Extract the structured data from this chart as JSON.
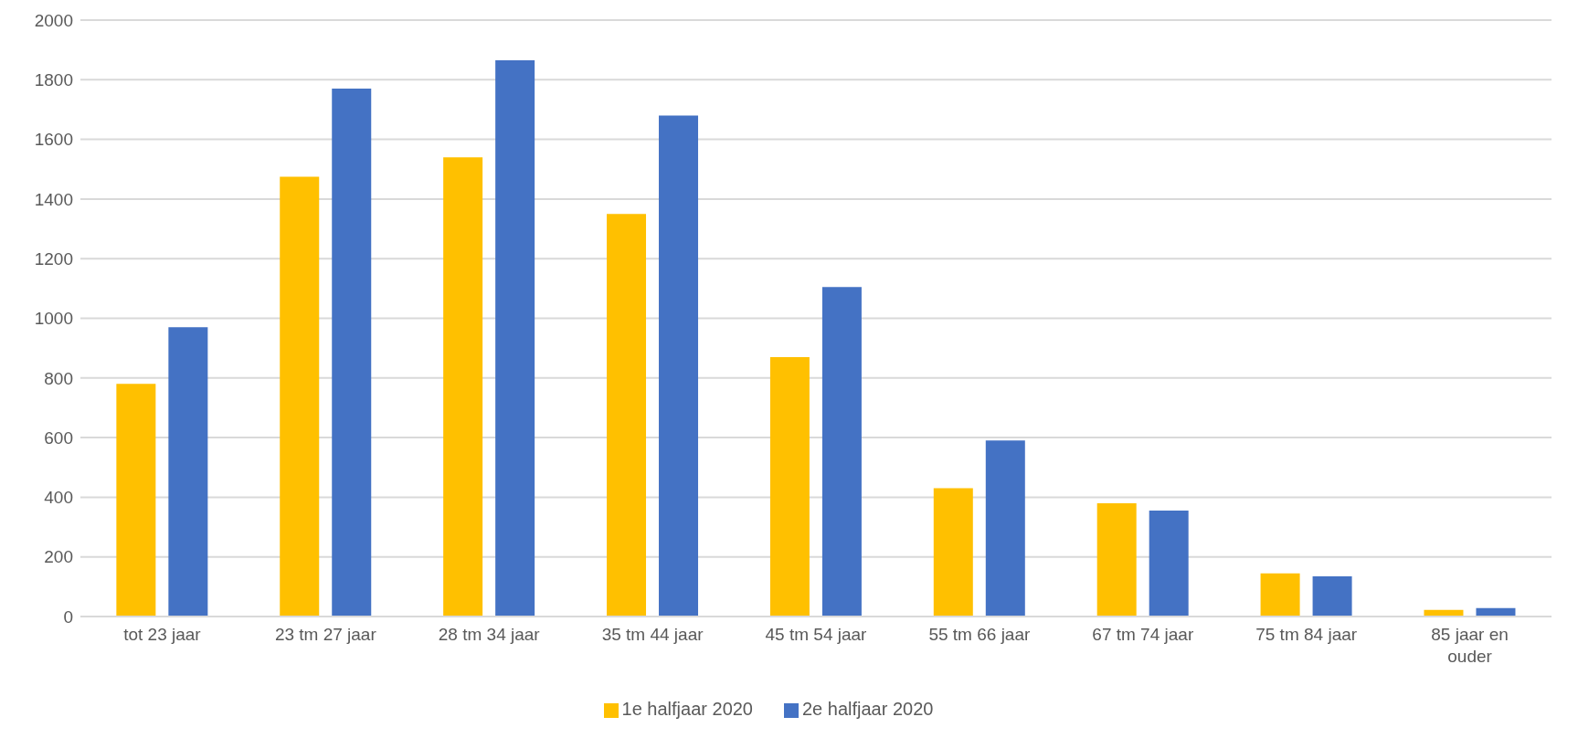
{
  "chart_data": {
    "type": "bar",
    "categories": [
      "tot 23 jaar",
      "23 tm 27 jaar",
      "28 tm 34 jaar",
      "35 tm 44 jaar",
      "45 tm 54 jaar",
      "55 tm 66 jaar",
      "67 tm 74 jaar",
      "75 tm 84 jaar",
      "85 jaar en ouder"
    ],
    "series": [
      {
        "name": "1e halfjaar 2020",
        "color": "#ffc000",
        "values": [
          780,
          1475,
          1540,
          1350,
          870,
          430,
          380,
          145,
          22
        ]
      },
      {
        "name": "2e halfjaar 2020",
        "color": "#4472c4",
        "values": [
          970,
          1770,
          1865,
          1680,
          1105,
          590,
          355,
          135,
          28
        ]
      }
    ],
    "ylim": [
      0,
      2000
    ],
    "yticks": [
      0,
      200,
      400,
      600,
      800,
      1000,
      1200,
      1400,
      1600,
      1800,
      2000
    ],
    "grid": "y",
    "legend": "bottom"
  }
}
